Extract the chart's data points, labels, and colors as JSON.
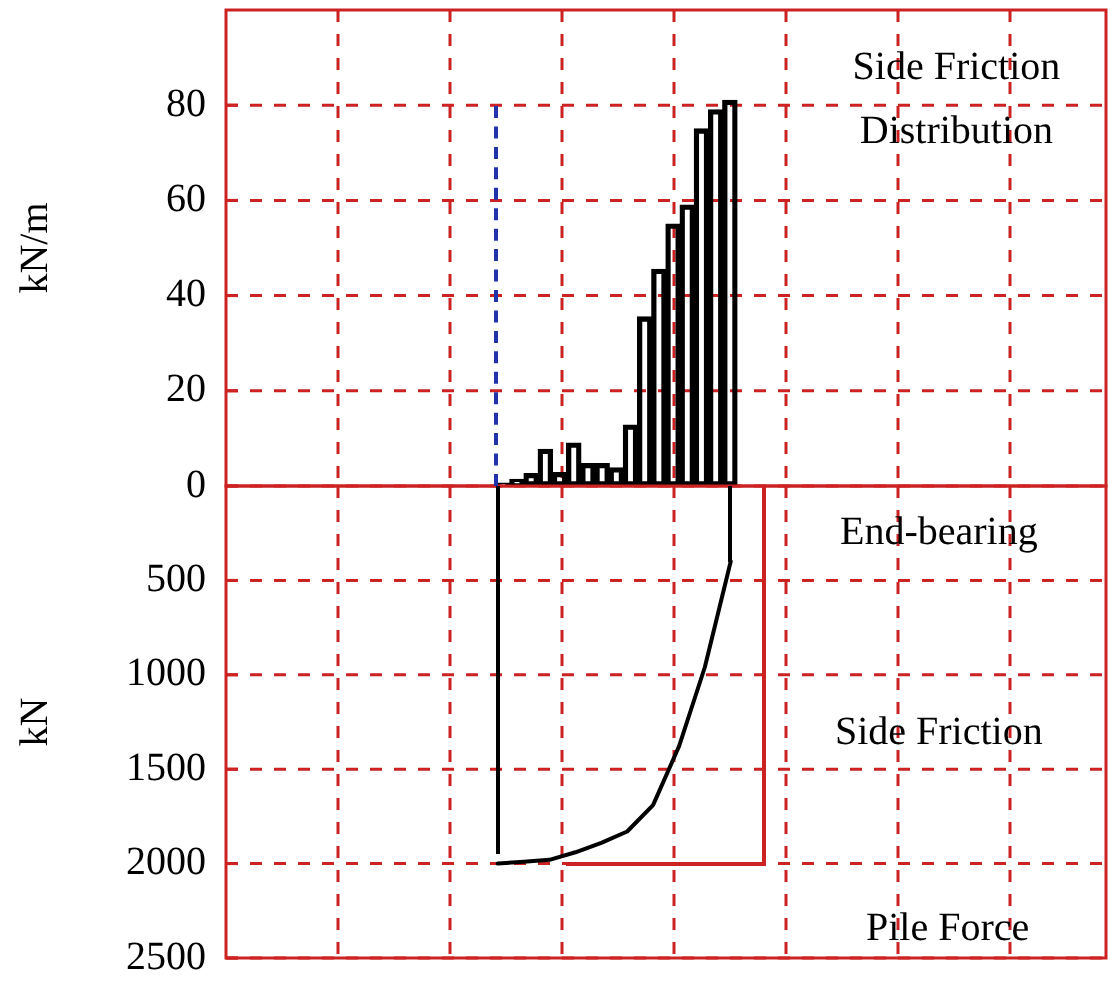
{
  "chart_data": [
    {
      "type": "bar",
      "ylabel": "kN/m",
      "categories": [
        null,
        null,
        null,
        null,
        null,
        null,
        null,
        null,
        null,
        null,
        null,
        null,
        null,
        null,
        null,
        null,
        null,
        null,
        null,
        null,
        null,
        null,
        null,
        null,
        null,
        null,
        null,
        null,
        null,
        null,
        null,
        null,
        null,
        null,
        null,
        null,
        null,
        null,
        null,
        null,
        null,
        null,
        null,
        null,
        null,
        null,
        null,
        null,
        null,
        null,
        null,
        null,
        null,
        null,
        null,
        null,
        null,
        null,
        null,
        null,
        null,
        null
      ],
      "color": "#000000",
      "values": [
        null,
        null,
        null,
        null,
        null,
        null,
        null,
        null,
        null,
        null,
        null,
        null,
        null,
        null,
        null,
        null,
        null,
        null,
        null,
        0.6,
        1.4,
        2.6,
        7.7,
        2.8,
        9,
        4.7,
        4.7,
        3.8,
        12.8,
        35.5,
        45.5,
        55,
        59,
        75,
        79,
        81,
        null,
        null,
        null,
        null,
        null,
        null,
        null,
        null,
        null,
        null,
        null,
        null,
        null,
        null,
        null,
        null,
        null,
        null,
        null,
        null,
        null,
        null,
        null,
        null,
        null,
        null
      ],
      "ylim": [
        0,
        100
      ],
      "yticks": [
        0,
        20,
        40,
        60,
        80
      ],
      "grid": true,
      "tick_labels": "y",
      "annotations": [
        "Side Friction Distribution"
      ]
    },
    {
      "type": "line",
      "ylabel": "kN",
      "categories": [
        null,
        null,
        null,
        null,
        null,
        null,
        null,
        null,
        null,
        null,
        null,
        null,
        null,
        null,
        null,
        null,
        null,
        null,
        null,
        null,
        null,
        null,
        null,
        null,
        null,
        null,
        null,
        null,
        null,
        null,
        null,
        null,
        null,
        null
      ],
      "color": "#000000",
      "values": [
        null,
        null,
        null,
        null,
        null,
        null,
        null,
        null,
        null,
        null,
        2000,
        1990,
        1980,
        1940,
        1890,
        1830,
        1690,
        1380,
        960,
        400,
        null,
        null,
        null,
        null,
        null,
        null,
        null,
        null,
        null,
        null,
        null,
        null,
        null,
        null
      ],
      "ylim": [
        2500,
        0
      ],
      "yticks": [
        500,
        1000,
        1500,
        2000,
        2500
      ],
      "grid": true,
      "tick_labels": "y",
      "annotations": [
        "End-bearing",
        "Side Friction",
        "Pile Force"
      ]
    }
  ]
}
